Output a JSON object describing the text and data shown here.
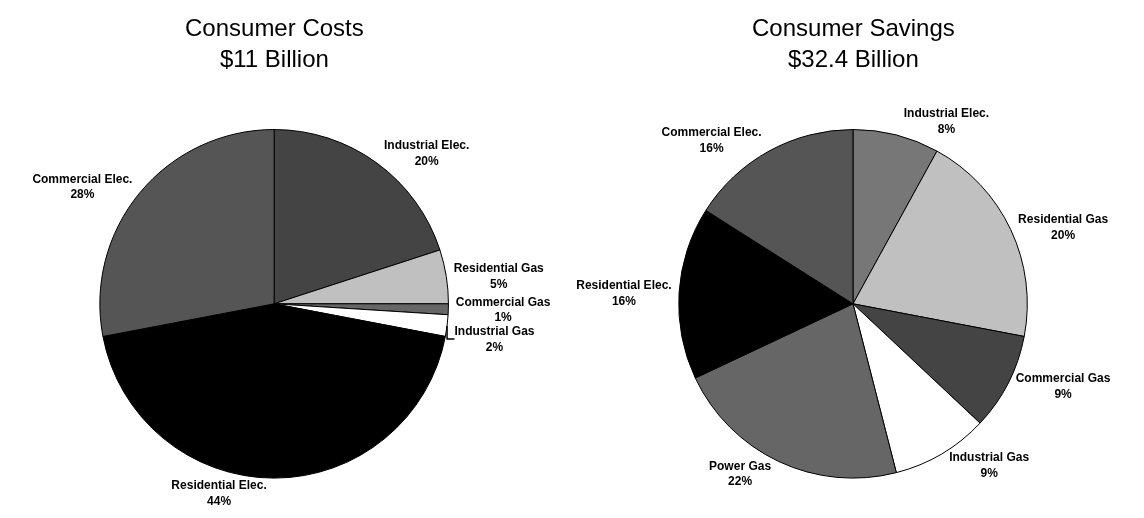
{
  "chart_data": [
    {
      "type": "pie",
      "title": "Consumer Costs\n$11 Billion",
      "categories": [
        "Industrial Elec.",
        "Residential Gas",
        "Commercial Gas",
        "Industrial Gas",
        "Residential Elec.",
        "Commercial Elec."
      ],
      "values": [
        20,
        5,
        1,
        2,
        44,
        28
      ],
      "value_labels": [
        "20%",
        "5%",
        "1%",
        "2%",
        "44%",
        "28%"
      ],
      "colors": [
        "#444444",
        "#c0c0c0",
        "#666666",
        "#ffffff",
        "#000000",
        "#555555"
      ],
      "legend": false
    },
    {
      "type": "pie",
      "title": "Consumer Savings\n$32.4 Billion",
      "categories": [
        "Industrial Elec.",
        "Residential Gas",
        "Commercial Gas",
        "Industrial Gas",
        "Power Gas",
        "Residential Elec.",
        "Commercial Elec."
      ],
      "values": [
        8,
        20,
        9,
        9,
        22,
        16,
        16
      ],
      "value_labels": [
        "8%",
        "20%",
        "9%",
        "9%",
        "22%",
        "16%",
        "16%"
      ],
      "colors": [
        "#777777",
        "#c0c0c0",
        "#444444",
        "#ffffff",
        "#666666",
        "#000000",
        "#555555"
      ],
      "legend": false
    }
  ]
}
